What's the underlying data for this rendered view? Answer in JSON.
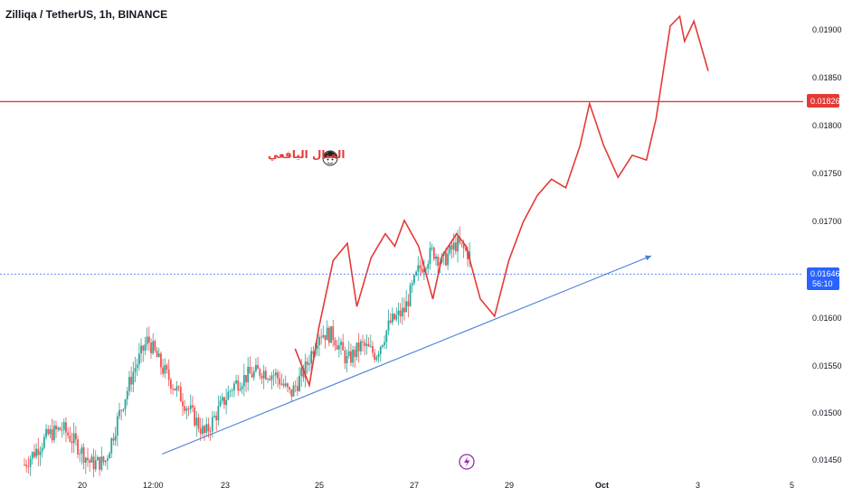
{
  "header": {
    "title": "Zilliqa / TetherUS, 1h, BINANCE"
  },
  "annotation": {
    "text": "المنال اليافعي"
  },
  "colors": {
    "up": "#26a69a",
    "down": "#ef5350",
    "projection": "#e53935",
    "trendline": "#4a7fd4",
    "current_price": "#2962ff",
    "resistance": "#e53935"
  },
  "chart_data": {
    "type": "candlestick",
    "symbol": "Zilliqa / TetherUS",
    "interval": "1h",
    "exchange": "BINANCE",
    "x_tick_labels": [
      "20",
      "12:00",
      "23",
      "25",
      "27",
      "29",
      "Oct",
      "3",
      "5"
    ],
    "y_tick_labels": [
      "0.01900",
      "0.01850",
      "0.01800",
      "0.01750",
      "0.01700",
      "0.01600",
      "0.01550",
      "0.01500",
      "0.01450"
    ],
    "ylim": [
      0.0144,
      0.0194
    ],
    "current_price": {
      "value": "0.01646",
      "countdown": "56:10"
    },
    "resistance_line": {
      "value": "0.01826"
    },
    "price_path_approx": [
      [
        18.8,
        0.01447
      ],
      [
        19.3,
        0.01478
      ],
      [
        19.6,
        0.01485
      ],
      [
        19.9,
        0.01468
      ],
      [
        20.2,
        0.01448
      ],
      [
        20.5,
        0.0145
      ],
      [
        20.8,
        0.015
      ],
      [
        21.1,
        0.01545
      ],
      [
        21.4,
        0.01578
      ],
      [
        21.7,
        0.01548
      ],
      [
        22.0,
        0.01525
      ],
      [
        22.3,
        0.01502
      ],
      [
        22.6,
        0.01478
      ],
      [
        22.9,
        0.01505
      ],
      [
        23.2,
        0.0153
      ],
      [
        23.5,
        0.0154
      ],
      [
        23.8,
        0.01545
      ],
      [
        24.1,
        0.0154
      ],
      [
        24.4,
        0.0152
      ],
      [
        24.7,
        0.01545
      ],
      [
        25.0,
        0.01585
      ],
      [
        25.3,
        0.01582
      ],
      [
        25.6,
        0.01555
      ],
      [
        25.9,
        0.01572
      ],
      [
        26.2,
        0.01562
      ],
      [
        26.5,
        0.01595
      ],
      [
        26.8,
        0.01608
      ],
      [
        27.1,
        0.0165
      ],
      [
        27.4,
        0.0167
      ],
      [
        27.6,
        0.01658
      ],
      [
        27.9,
        0.01678
      ],
      [
        28.2,
        0.01665
      ]
    ],
    "projection_path_approx": [
      [
        24.5,
        0.01568
      ],
      [
        24.8,
        0.0153
      ],
      [
        25.0,
        0.0159
      ],
      [
        25.3,
        0.0166
      ],
      [
        25.6,
        0.01678
      ],
      [
        25.8,
        0.01612
      ],
      [
        26.1,
        0.01663
      ],
      [
        26.4,
        0.01688
      ],
      [
        26.6,
        0.01675
      ],
      [
        26.8,
        0.01702
      ],
      [
        27.1,
        0.01675
      ],
      [
        27.4,
        0.0162
      ],
      [
        27.6,
        0.01665
      ],
      [
        27.9,
        0.01688
      ],
      [
        28.1,
        0.01675
      ],
      [
        28.4,
        0.0162
      ],
      [
        28.7,
        0.01602
      ],
      [
        29.0,
        0.0166
      ],
      [
        29.3,
        0.017
      ],
      [
        29.6,
        0.01728
      ],
      [
        29.9,
        0.01745
      ],
      [
        30.2,
        0.01736
      ],
      [
        30.5,
        0.0178
      ],
      [
        30.7,
        0.01824
      ],
      [
        31.0,
        0.0178
      ],
      [
        31.3,
        0.01747
      ],
      [
        31.6,
        0.0177
      ],
      [
        31.9,
        0.01765
      ],
      [
        32.1,
        0.01808
      ],
      [
        32.4,
        0.01905
      ],
      [
        32.6,
        0.01915
      ],
      [
        32.7,
        0.01889
      ],
      [
        32.9,
        0.0191
      ],
      [
        33.2,
        0.01858
      ]
    ],
    "trendline": {
      "from": [
        21.7,
        0.01458
      ],
      "to": [
        32.0,
        0.01665
      ]
    },
    "grid": false
  }
}
